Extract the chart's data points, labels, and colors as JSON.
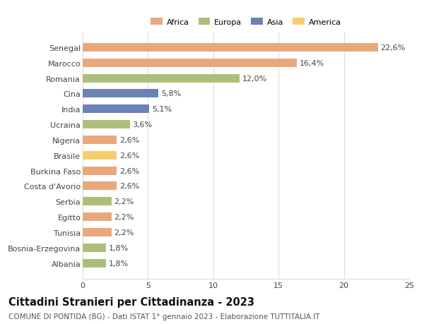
{
  "countries": [
    "Albania",
    "Bosnia-Erzegovina",
    "Tunisia",
    "Egitto",
    "Serbia",
    "Costa d'Avorio",
    "Burkina Faso",
    "Brasile",
    "Nigeria",
    "Ucraina",
    "India",
    "Cina",
    "Romania",
    "Marocco",
    "Senegal"
  ],
  "values": [
    1.8,
    1.8,
    2.2,
    2.2,
    2.2,
    2.6,
    2.6,
    2.6,
    2.6,
    3.6,
    5.1,
    5.8,
    12.0,
    16.4,
    22.6
  ],
  "continents": [
    "Europa",
    "Europa",
    "Africa",
    "Africa",
    "Europa",
    "Africa",
    "Africa",
    "America",
    "Africa",
    "Europa",
    "Asia",
    "Asia",
    "Europa",
    "Africa",
    "Africa"
  ],
  "colors": {
    "Africa": "#E8A87C",
    "Europa": "#ABBF7A",
    "Asia": "#6B82B5",
    "America": "#F5CE6E"
  },
  "legend_order": [
    "Africa",
    "Europa",
    "Asia",
    "America"
  ],
  "xlim": [
    0,
    25
  ],
  "xticks": [
    0,
    5,
    10,
    15,
    20,
    25
  ],
  "title": "Cittadini Stranieri per Cittadinanza - 2023",
  "subtitle": "COMUNE DI PONTIDA (BG) - Dati ISTAT 1° gennaio 2023 - Elaborazione TUTTITALIA.IT",
  "bar_height": 0.55,
  "bg_color": "#ffffff",
  "grid_color": "#dddddd",
  "label_fontsize": 8,
  "title_fontsize": 10.5,
  "subtitle_fontsize": 7.5
}
